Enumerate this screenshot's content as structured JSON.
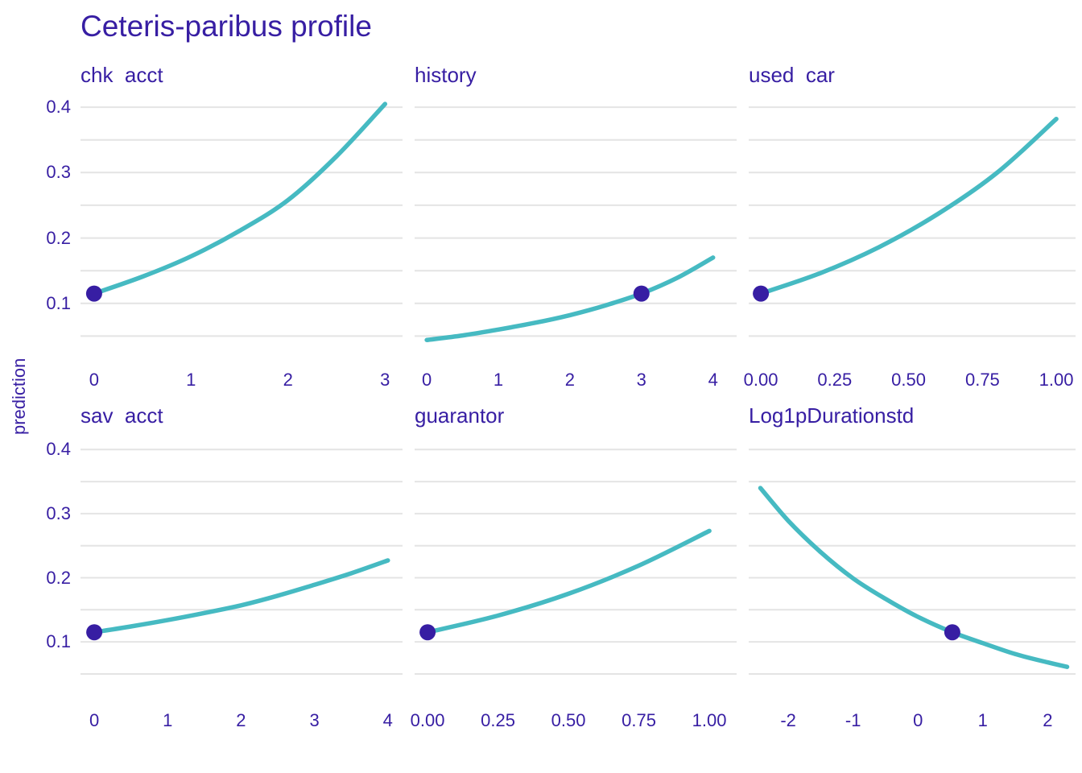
{
  "chart_data": {
    "type": "line",
    "title": "Ceteris-paribus profile",
    "ylabel": "prediction",
    "colors": {
      "line": "#46bac2",
      "point": "#371ea3",
      "text": "#371ea3",
      "grid": "#e4e4e4",
      "background": "#ffffff"
    },
    "y_grid": [
      0.05,
      0.1,
      0.15,
      0.2,
      0.25,
      0.3,
      0.35,
      0.4
    ],
    "y_ticks": [
      {
        "v": 0.1,
        "label": "0.1"
      },
      {
        "v": 0.2,
        "label": "0.2"
      },
      {
        "v": 0.3,
        "label": "0.3"
      },
      {
        "v": 0.4,
        "label": "0.4"
      }
    ],
    "rows": [
      {
        "y_domain": [
          0.016,
          0.426
        ]
      },
      {
        "y_domain": [
          0.011,
          0.423
        ]
      }
    ],
    "legend": "none",
    "facets": [
      {
        "label": "chk  acct",
        "row": 0,
        "col": 0,
        "x_domain": [
          -0.14,
          3.18
        ],
        "x_ticks": [
          {
            "v": 0,
            "label": "0"
          },
          {
            "v": 1,
            "label": "1"
          },
          {
            "v": 2,
            "label": "2"
          },
          {
            "v": 3,
            "label": "3"
          }
        ],
        "curve": [
          [
            0,
            0.115
          ],
          [
            0.5,
            0.141
          ],
          [
            1,
            0.172
          ],
          [
            1.5,
            0.211
          ],
          [
            2,
            0.258
          ],
          [
            2.5,
            0.325
          ],
          [
            3,
            0.405
          ]
        ],
        "dot": [
          0,
          0.115
        ]
      },
      {
        "label": "history",
        "row": 0,
        "col": 1,
        "x_domain": [
          -0.17,
          4.33
        ],
        "x_ticks": [
          {
            "v": 0,
            "label": "0"
          },
          {
            "v": 1,
            "label": "1"
          },
          {
            "v": 2,
            "label": "2"
          },
          {
            "v": 3,
            "label": "3"
          },
          {
            "v": 4,
            "label": "4"
          }
        ],
        "curve": [
          [
            0,
            0.044
          ],
          [
            0.5,
            0.051
          ],
          [
            1,
            0.06
          ],
          [
            1.5,
            0.07
          ],
          [
            2,
            0.082
          ],
          [
            2.5,
            0.097
          ],
          [
            3,
            0.115
          ],
          [
            3.5,
            0.139
          ],
          [
            4,
            0.17
          ]
        ],
        "dot": [
          3,
          0.115
        ]
      },
      {
        "label": "used  car",
        "row": 0,
        "col": 2,
        "x_domain": [
          -0.041,
          1.065
        ],
        "x_ticks": [
          {
            "v": 0,
            "label": "0.00"
          },
          {
            "v": 0.25,
            "label": "0.25"
          },
          {
            "v": 0.5,
            "label": "0.50"
          },
          {
            "v": 0.75,
            "label": "0.75"
          },
          {
            "v": 1,
            "label": "1.00"
          }
        ],
        "curve": [
          [
            0,
            0.115
          ],
          [
            0.2,
            0.146
          ],
          [
            0.4,
            0.186
          ],
          [
            0.6,
            0.237
          ],
          [
            0.8,
            0.3
          ],
          [
            1,
            0.382
          ]
        ],
        "dot": [
          0,
          0.115
        ]
      },
      {
        "label": "sav  acct",
        "row": 1,
        "col": 0,
        "x_domain": [
          -0.187,
          4.2
        ],
        "x_ticks": [
          {
            "v": 0,
            "label": "0"
          },
          {
            "v": 1,
            "label": "1"
          },
          {
            "v": 2,
            "label": "2"
          },
          {
            "v": 3,
            "label": "3"
          },
          {
            "v": 4,
            "label": "4"
          }
        ],
        "curve": [
          [
            0,
            0.115
          ],
          [
            0.5,
            0.124
          ],
          [
            1,
            0.134
          ],
          [
            1.5,
            0.145
          ],
          [
            2,
            0.157
          ],
          [
            2.5,
            0.172
          ],
          [
            3,
            0.189
          ],
          [
            3.5,
            0.207
          ],
          [
            4,
            0.227
          ]
        ],
        "dot": [
          0,
          0.115
        ]
      },
      {
        "label": "guarantor",
        "row": 1,
        "col": 1,
        "x_domain": [
          -0.046,
          1.097
        ],
        "x_ticks": [
          {
            "v": 0,
            "label": "0.00"
          },
          {
            "v": 0.25,
            "label": "0.25"
          },
          {
            "v": 0.5,
            "label": "0.50"
          },
          {
            "v": 0.75,
            "label": "0.75"
          },
          {
            "v": 1,
            "label": "1.00"
          }
        ],
        "curve": [
          [
            0,
            0.115
          ],
          [
            0.25,
            0.141
          ],
          [
            0.5,
            0.175
          ],
          [
            0.75,
            0.219
          ],
          [
            1,
            0.273
          ]
        ],
        "dot": [
          0,
          0.115
        ]
      },
      {
        "label": "Log1pDurationstd",
        "row": 1,
        "col": 2,
        "x_domain": [
          -2.61,
          2.43
        ],
        "x_ticks": [
          {
            "v": -2,
            "label": "-2"
          },
          {
            "v": -1,
            "label": "-1"
          },
          {
            "v": 0,
            "label": "0"
          },
          {
            "v": 1,
            "label": "1"
          },
          {
            "v": 2,
            "label": "2"
          }
        ],
        "curve": [
          [
            -2.43,
            0.34
          ],
          [
            -2,
            0.289
          ],
          [
            -1.5,
            0.24
          ],
          [
            -1,
            0.199
          ],
          [
            -0.5,
            0.167
          ],
          [
            0,
            0.139
          ],
          [
            0.53,
            0.115
          ],
          [
            1,
            0.098
          ],
          [
            1.5,
            0.081
          ],
          [
            2,
            0.068
          ],
          [
            2.3,
            0.061
          ]
        ],
        "dot": [
          0.53,
          0.115
        ]
      }
    ]
  }
}
